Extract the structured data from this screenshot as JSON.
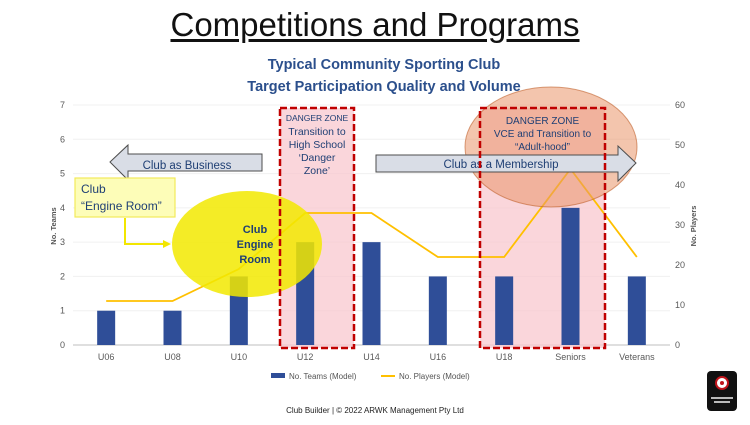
{
  "page": {
    "title": "Competitions and Programs",
    "footer": "Club Builder | © 2022 ARWK Management Pty Ltd"
  },
  "colors": {
    "bars": "#2f4e98",
    "line": "#ffc000",
    "danger_fill": "#f8c8cf",
    "danger_border": "#c00000",
    "engine_room": "#f2e900",
    "adulthood_circle": "#e9956a",
    "arrows": "#d9dde6",
    "headline": "#2b4f8c"
  },
  "chart_data": {
    "type": "bar",
    "title": "Typical Community Sporting Club",
    "subtitle": "Target Participation Quality and Volume",
    "categories": [
      "U06",
      "U08",
      "U10",
      "U12",
      "U14",
      "U16",
      "U18",
      "Seniors",
      "Veterans"
    ],
    "series": [
      {
        "name": "No. Teams (Model)",
        "type": "bar",
        "axis": "left",
        "values": [
          1,
          1,
          2,
          3,
          3,
          2,
          2,
          4,
          2
        ]
      },
      {
        "name": "No. Players (Model)",
        "type": "line",
        "axis": "right",
        "values": [
          11,
          11,
          19,
          33,
          33,
          22,
          22,
          44,
          22
        ]
      }
    ],
    "ylabel": "No. Teams",
    "y2label": "No. Players",
    "ylim": [
      0,
      7
    ],
    "y2lim": [
      0,
      60
    ],
    "yticks": [
      "0",
      "1",
      "2",
      "3",
      "4",
      "5",
      "6",
      "7"
    ],
    "y2ticks": [
      "0",
      "10",
      "20",
      "30",
      "40",
      "50",
      "60"
    ],
    "legend_position": "bottom",
    "annotations": {
      "danger1": "DANGER ZONE",
      "danger1_l1": "Transition to",
      "danger1_l2": "High School",
      "danger1_l3": "‘Danger",
      "danger1_l4": "Zone’",
      "danger2": "DANGER ZONE",
      "danger2_l1": "VCE and Transition to",
      "danger2_l2": "“Adult-hood”",
      "arrow_left": "Club as Business",
      "arrow_right": "Club as a Membership",
      "engine_box_l1": "Club",
      "engine_box_l2": "“Engine Room”",
      "engine_l1": "Club",
      "engine_l2": "Engine",
      "engine_l3": "Room"
    }
  }
}
